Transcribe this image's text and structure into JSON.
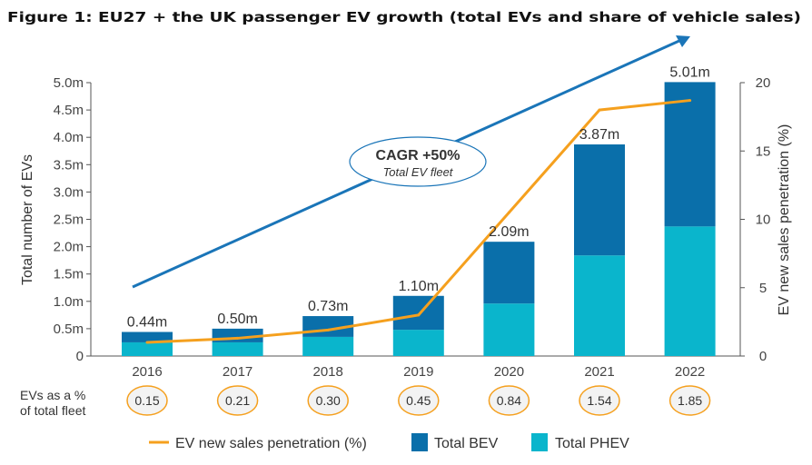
{
  "chart_data": {
    "type": "bar",
    "title": "Figure 1: EU27 + the UK passenger EV growth (total EVs and share of vehicle sales)",
    "categories": [
      "2016",
      "2017",
      "2018",
      "2019",
      "2020",
      "2021",
      "2022"
    ],
    "stacked": true,
    "series": [
      {
        "name": "Total PHEV",
        "type": "bar",
        "axis": "left",
        "color": "#0ab5cc",
        "values": [
          0.25,
          0.25,
          0.35,
          0.48,
          0.96,
          1.84,
          2.37
        ]
      },
      {
        "name": "Total BEV",
        "type": "bar",
        "axis": "left",
        "color": "#0a6faa",
        "values": [
          0.19,
          0.25,
          0.38,
          0.62,
          1.13,
          2.03,
          2.64
        ]
      },
      {
        "name": "EV new sales penetration (%)",
        "type": "line",
        "axis": "right",
        "color": "#f5a01e",
        "values": [
          1.0,
          1.3,
          1.9,
          3.0,
          10.5,
          18.0,
          18.7
        ]
      }
    ],
    "total_labels": [
      "0.44m",
      "0.50m",
      "0.73m",
      "1.10m",
      "2.09m",
      "3.87m",
      "5.01m"
    ],
    "ylabel": "Total number of EVs",
    "ylim": [
      0,
      5
    ],
    "yticks": [
      "0",
      "0.5m",
      "1.0m",
      "1.5m",
      "2.0m",
      "2.5m",
      "3.0m",
      "3.5m",
      "4.0m",
      "4.5m",
      "5.0m"
    ],
    "y2label": "EV new sales penetration (%)",
    "y2lim": [
      0,
      20
    ],
    "y2ticks": [
      "0",
      "5",
      "10",
      "15",
      "20"
    ],
    "grid": false,
    "legend": "bottom",
    "annotation": {
      "line1": "CAGR +50%",
      "line2": "Total EV fleet",
      "arrow_color": "#1a75b8"
    },
    "fleet_share": {
      "label_line1": "EVs as a %",
      "label_line2": "of total fleet",
      "values": [
        "0.15",
        "0.21",
        "0.30",
        "0.45",
        "0.84",
        "1.54",
        "1.85"
      ]
    }
  }
}
